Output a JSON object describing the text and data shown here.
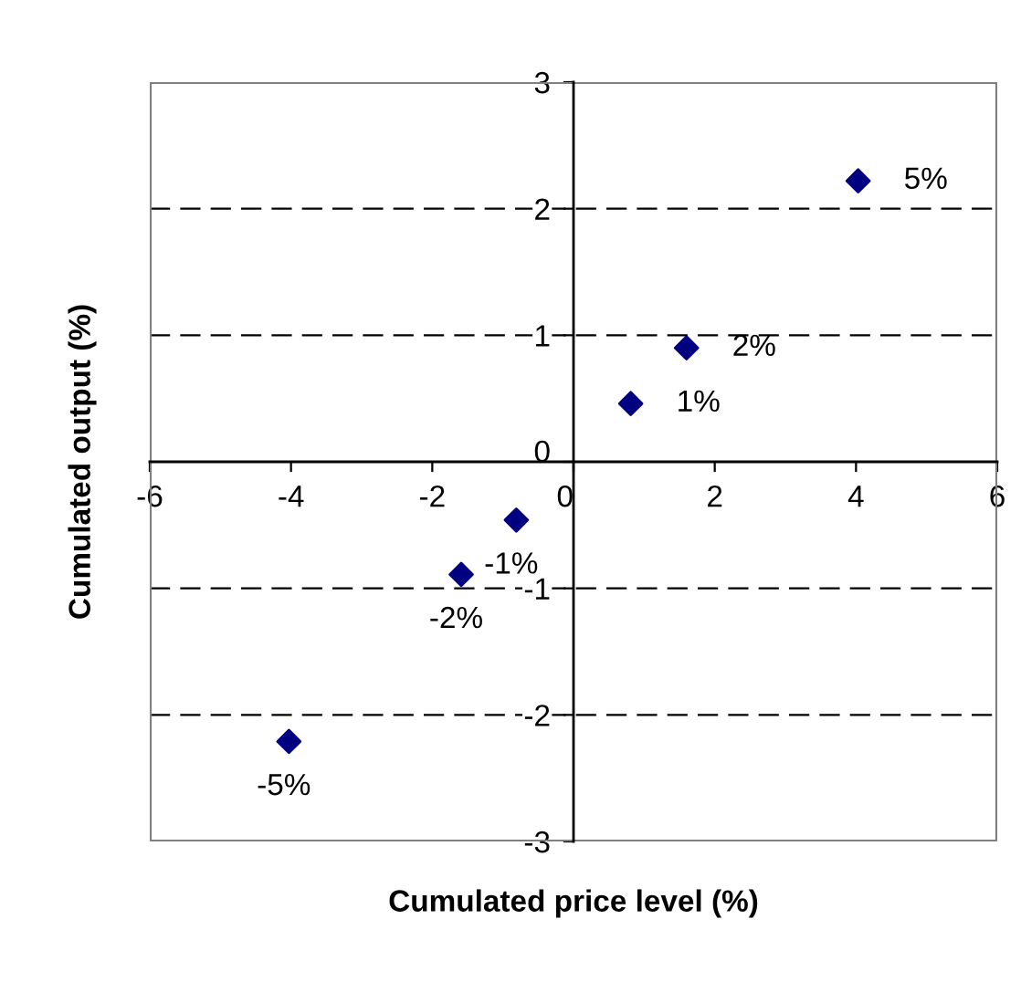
{
  "chart_data": {
    "type": "scatter",
    "xlabel": "Cumulated price level (%)",
    "ylabel": "Cumulated output (%)",
    "series": [
      {
        "color": "#000080",
        "x": [
          4.03,
          1.6,
          0.81,
          -0.81,
          -1.59,
          -4.03
        ],
        "values": [
          2.22,
          0.9,
          0.46,
          -0.46,
          -0.89,
          -2.21
        ]
      }
    ],
    "annotations": [
      {
        "text": "5%",
        "x": 4.03,
        "y": 2.22
      },
      {
        "text": "2%",
        "x": 1.6,
        "y": 0.9
      },
      {
        "text": "1%",
        "x": 0.81,
        "y": 0.46
      },
      {
        "text": "-1%",
        "x": -0.81,
        "y": -0.46
      },
      {
        "text": "-2%",
        "x": -1.59,
        "y": -0.89
      },
      {
        "text": "-5%",
        "x": -4.03,
        "y": -2.21
      }
    ],
    "xlim": [
      -6,
      6
    ],
    "ylim": [
      -3,
      3
    ],
    "xticks": [
      -6,
      -4,
      -2,
      0,
      2,
      4,
      6
    ],
    "yticks": [
      -3,
      -2,
      -1,
      0,
      1,
      2,
      3
    ],
    "grid": "y",
    "marker": "diamond",
    "legend": false
  }
}
